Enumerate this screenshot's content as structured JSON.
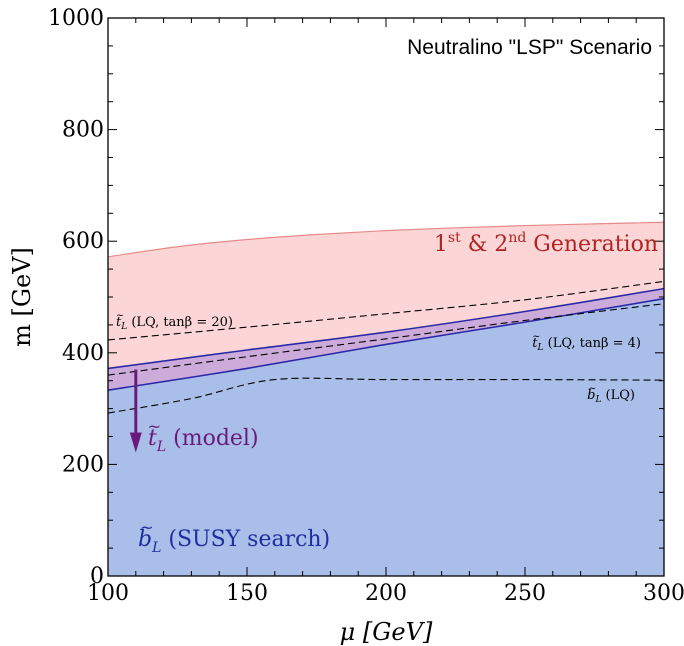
{
  "chart_data": {
    "type": "area",
    "title": "Neutralino \"LSP\" Scenario",
    "xlabel": "μ [GeV]",
    "ylabel": "m [GeV]",
    "xlim": [
      100,
      300
    ],
    "ylim": [
      0,
      1000
    ],
    "xticks": [
      100,
      150,
      200,
      250,
      300
    ],
    "yticks": [
      0,
      200,
      400,
      600,
      800,
      1000
    ],
    "grid": false,
    "colors": {
      "gen12_fill": "#fcd6d6",
      "gen12_line": "#e88a8a",
      "sbottom_fill": "#a9bfe9",
      "sbottom_line": "#2a2aa8",
      "stop_fill": "#c7a6dc",
      "stop_arrow": "#6a1b7a",
      "gen12_text": "#b22222",
      "stop_text": "#6a1b7a",
      "sbottom_text": "#1f2ea0"
    },
    "regions": [
      {
        "id": "gen12",
        "label": "1st & 2nd Generation",
        "upper": {
          "x": [
            100,
            125,
            150,
            175,
            200,
            225,
            250,
            275,
            300
          ],
          "y": [
            572,
            590,
            603,
            612,
            619,
            624,
            628,
            631,
            634
          ]
        }
      },
      {
        "id": "stop_model",
        "label": "t̃_L (model)",
        "upper": {
          "x": [
            100,
            150,
            200,
            250,
            300
          ],
          "y": [
            372,
            405,
            437,
            474,
            515
          ]
        },
        "lower": {
          "x": [
            100,
            150,
            200,
            250,
            300
          ],
          "y": [
            333,
            372,
            415,
            455,
            497
          ]
        }
      },
      {
        "id": "sbottom_search",
        "label": "b̃_L (SUSY search)",
        "upper": {
          "x": [
            100,
            150,
            200,
            250,
            300
          ],
          "y": [
            333,
            372,
            415,
            455,
            497
          ]
        }
      }
    ],
    "series": [
      {
        "name": "t̃_L (LQ, tanβ = 20)",
        "style": "dashed",
        "x": [
          100,
          150,
          200,
          250,
          300
        ],
        "y": [
          423,
          446,
          470,
          495,
          528
        ]
      },
      {
        "name": "t̃_L (LQ, tanβ = 4)",
        "style": "dashed",
        "x": [
          100,
          150,
          200,
          250,
          300
        ],
        "y": [
          360,
          393,
          425,
          458,
          488
        ]
      },
      {
        "name": "b̃_L (LQ)",
        "style": "dashed",
        "x": [
          100,
          130,
          160,
          200,
          250,
          300
        ],
        "y": [
          292,
          318,
          352,
          352,
          352,
          351
        ]
      }
    ],
    "annotations": [
      {
        "text": "t̃_L (model)",
        "type": "arrow",
        "x": 110,
        "y_from": 370,
        "y_to": 225
      }
    ],
    "labels": {
      "gen12": {
        "base1": "1",
        "sup1": "st",
        "mid": " & 2",
        "sup2": "nd",
        "end": " Generation"
      },
      "stop_model": {
        "tilde_letter": "t",
        "sub": "L",
        "rest": " (model)"
      },
      "sbottom_search": {
        "tilde_letter": "b",
        "sub": "L",
        "rest": " (SUSY search)"
      },
      "lq20": {
        "tilde_letter": "t",
        "sub": "L",
        "rest": " (LQ, tanβ = 20)"
      },
      "lq4": {
        "tilde_letter": "t",
        "sub": "L",
        "rest": " (LQ, tanβ = 4)"
      },
      "lqb": {
        "tilde_letter": "b",
        "sub": "L",
        "rest": " (LQ)"
      }
    }
  }
}
